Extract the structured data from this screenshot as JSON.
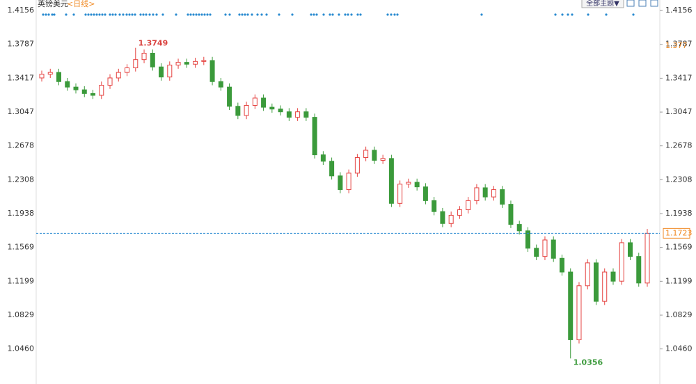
{
  "chart_data": {
    "type": "candlestick",
    "title": "英镑美元",
    "subtitle": "<日线>",
    "theme_button": "全部主题▼",
    "up_color": "#e5413f",
    "down_color": "#3b9a3b",
    "ylim": [
      1.0077,
      1.4271
    ],
    "yticks": [
      1.4156,
      1.3787,
      1.3417,
      1.3047,
      1.2678,
      1.2308,
      1.1938,
      1.1569,
      1.1199,
      1.0829,
      {
        "value": 1.046,
        "label": "1.0460"
      }
    ],
    "marker_value": 1.377,
    "open": [
      1.342,
      1.346,
      1.348,
      1.338,
      1.332,
      1.329,
      1.325,
      1.323,
      1.334,
      1.342,
      1.348,
      1.353,
      1.362,
      1.369,
      1.354,
      1.343,
      1.356,
      1.359,
      1.357,
      1.36,
      1.361,
      1.338,
      1.332,
      1.311,
      1.301,
      1.312,
      1.32,
      1.31,
      1.308,
      1.305,
      1.299,
      1.305,
      1.299,
      1.258,
      1.251,
      1.235,
      1.22,
      1.238,
      1.255,
      1.263,
      1.252,
      1.254,
      1.205,
      1.226,
      1.228,
      1.223,
      1.208,
      1.196,
      1.183,
      1.192,
      1.198,
      1.208,
      1.222,
      1.212,
      1.22,
      1.204,
      1.182,
      1.175,
      1.156,
      1.147,
      1.165,
      1.145,
      1.13,
      1.056,
      1.115,
      1.14,
      1.098,
      1.13,
      1.12,
      1.162,
      1.147,
      1.118
    ],
    "high": [
      1.35,
      1.352,
      1.352,
      1.342,
      1.336,
      1.333,
      1.329,
      1.338,
      1.346,
      1.352,
      1.357,
      1.3749,
      1.373,
      1.373,
      1.358,
      1.36,
      1.363,
      1.363,
      1.364,
      1.365,
      1.365,
      1.342,
      1.336,
      1.315,
      1.316,
      1.324,
      1.324,
      1.314,
      1.312,
      1.309,
      1.309,
      1.309,
      1.303,
      1.262,
      1.255,
      1.239,
      1.242,
      1.259,
      1.267,
      1.267,
      1.258,
      1.258,
      1.23,
      1.232,
      1.232,
      1.227,
      1.212,
      1.2,
      1.196,
      1.202,
      1.212,
      1.226,
      1.226,
      1.224,
      1.224,
      1.208,
      1.186,
      1.179,
      1.16,
      1.169,
      1.169,
      1.149,
      1.134,
      1.119,
      1.144,
      1.144,
      1.134,
      1.134,
      1.166,
      1.166,
      1.151,
      1.177
    ],
    "low": [
      1.338,
      1.342,
      1.334,
      1.328,
      1.325,
      1.321,
      1.319,
      1.319,
      1.33,
      1.338,
      1.344,
      1.349,
      1.358,
      1.35,
      1.339,
      1.339,
      1.352,
      1.353,
      1.353,
      1.356,
      1.334,
      1.328,
      1.307,
      1.297,
      1.297,
      1.308,
      1.306,
      1.304,
      1.301,
      1.295,
      1.295,
      1.295,
      1.254,
      1.247,
      1.231,
      1.216,
      1.216,
      1.234,
      1.251,
      1.248,
      1.248,
      1.201,
      1.201,
      1.222,
      1.219,
      1.204,
      1.192,
      1.179,
      1.179,
      1.188,
      1.194,
      1.204,
      1.208,
      1.208,
      1.2,
      1.178,
      1.171,
      1.152,
      1.143,
      1.143,
      1.141,
      1.126,
      1.0356,
      1.052,
      1.111,
      1.094,
      1.094,
      1.116,
      1.116,
      1.143,
      1.114,
      1.114
    ],
    "close": [
      1.346,
      1.348,
      1.338,
      1.332,
      1.329,
      1.325,
      1.323,
      1.334,
      1.342,
      1.348,
      1.353,
      1.362,
      1.369,
      1.354,
      1.343,
      1.356,
      1.359,
      1.357,
      1.36,
      1.361,
      1.338,
      1.332,
      1.311,
      1.301,
      1.312,
      1.32,
      1.31,
      1.308,
      1.305,
      1.299,
      1.305,
      1.299,
      1.258,
      1.251,
      1.235,
      1.22,
      1.238,
      1.255,
      1.263,
      1.252,
      1.254,
      1.205,
      1.226,
      1.228,
      1.223,
      1.208,
      1.196,
      1.183,
      1.192,
      1.198,
      1.208,
      1.222,
      1.212,
      1.22,
      1.204,
      1.182,
      1.175,
      1.156,
      1.147,
      1.165,
      1.145,
      1.13,
      1.056,
      1.115,
      1.14,
      1.098,
      1.13,
      1.12,
      1.162,
      1.147,
      1.118,
      1.1723
    ]
  }
}
